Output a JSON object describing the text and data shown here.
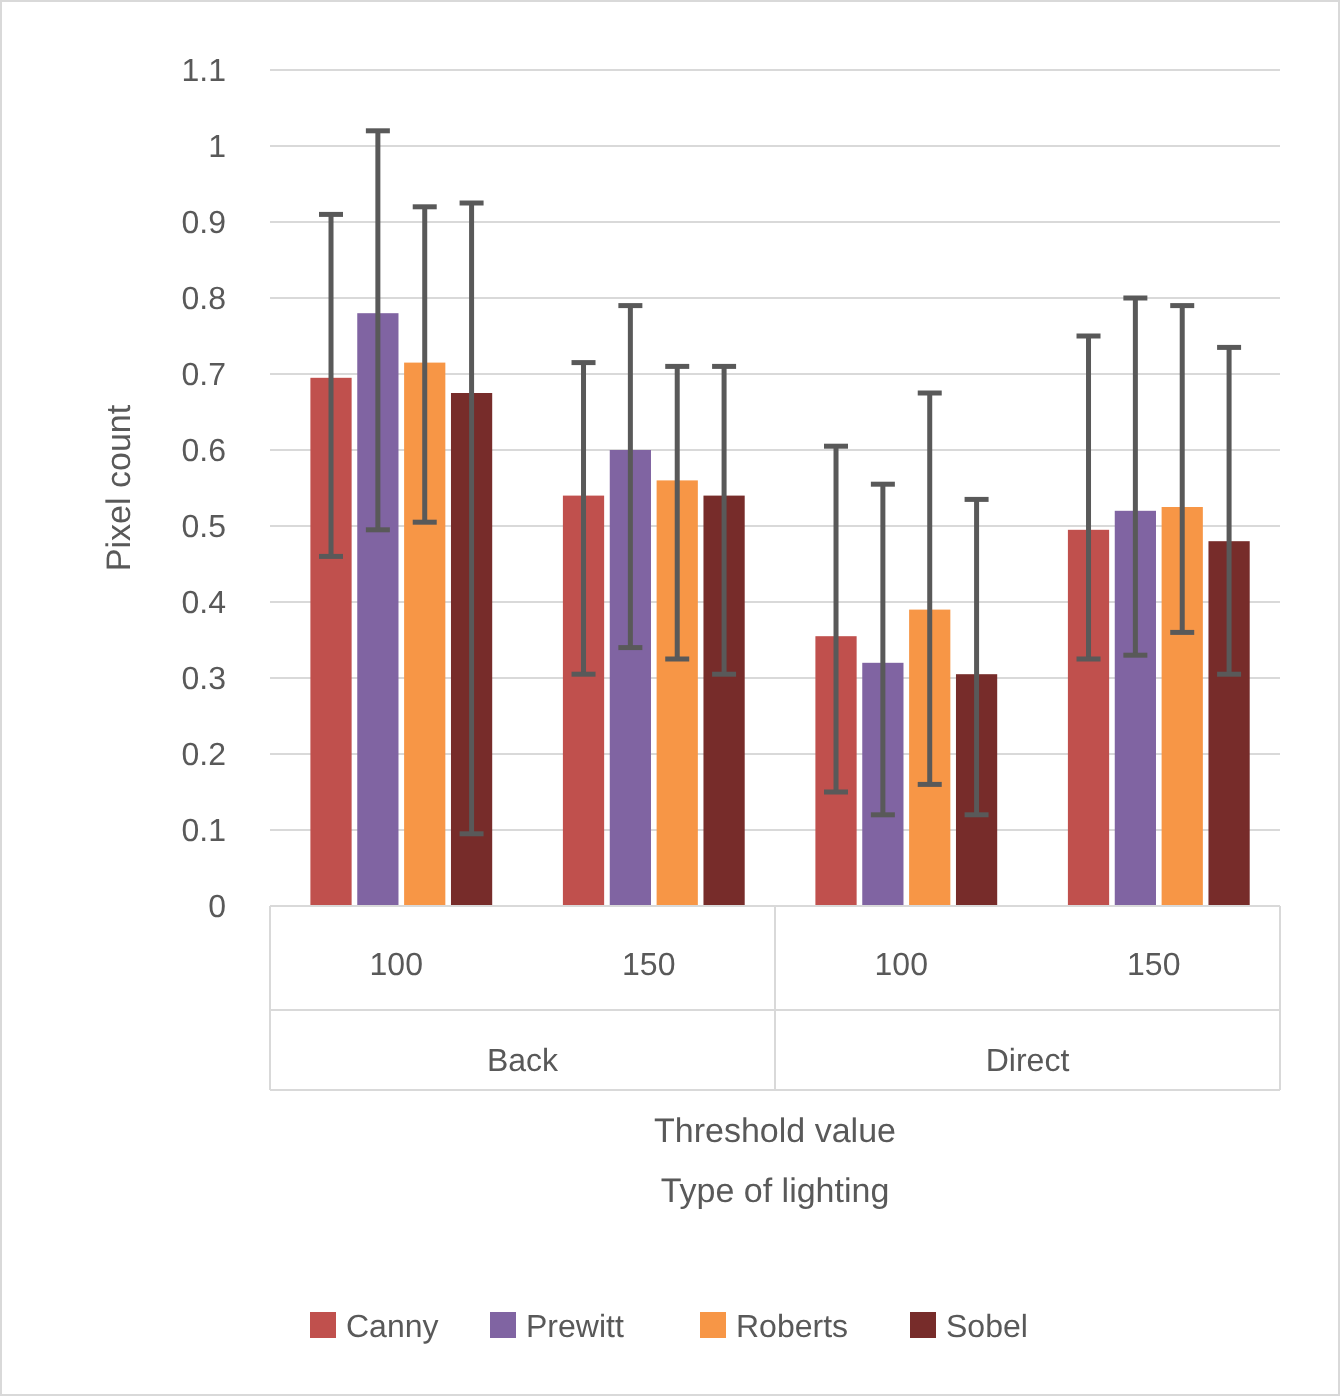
{
  "chart_data": {
    "type": "bar",
    "categories": [
      "100",
      "150",
      "100",
      "150"
    ],
    "xlabel": "Threshold value",
    "ylabel": "Pixel count",
    "annotations": [
      "Back",
      "Direct",
      "Type of lighting"
    ],
    "ylim": [
      0,
      1.1
    ],
    "yticks": [
      0,
      0.1,
      0.2,
      0.3,
      0.4,
      0.5,
      0.6,
      0.7,
      0.8,
      0.9,
      1,
      1.1
    ],
    "grid": "y",
    "legend": "bottom",
    "series": [
      {
        "name": "Canny",
        "color": "#c0504d",
        "values": [
          0.695,
          0.54,
          0.355,
          0.495
        ],
        "errors": [
          [
            0.46,
            0.91
          ],
          [
            0.305,
            0.715
          ],
          [
            0.15,
            0.605
          ],
          [
            0.325,
            0.75
          ]
        ]
      },
      {
        "name": "Prewitt",
        "color": "#8064a2",
        "values": [
          0.78,
          0.6,
          0.32,
          0.52
        ],
        "errors": [
          [
            0.495,
            1.02
          ],
          [
            0.34,
            0.79
          ],
          [
            0.12,
            0.555
          ],
          [
            0.33,
            0.8
          ]
        ]
      },
      {
        "name": "Roberts",
        "color": "#f79646",
        "values": [
          0.715,
          0.56,
          0.39,
          0.525
        ],
        "errors": [
          [
            0.505,
            0.92
          ],
          [
            0.325,
            0.71
          ],
          [
            0.16,
            0.675
          ],
          [
            0.36,
            0.79
          ]
        ]
      },
      {
        "name": "Sobel",
        "color": "#772c2a",
        "values": [
          0.675,
          0.54,
          0.305,
          0.48
        ],
        "errors": [
          [
            0.095,
            0.925
          ],
          [
            0.305,
            0.71
          ],
          [
            0.12,
            0.535
          ],
          [
            0.305,
            0.735
          ]
        ]
      }
    ]
  }
}
